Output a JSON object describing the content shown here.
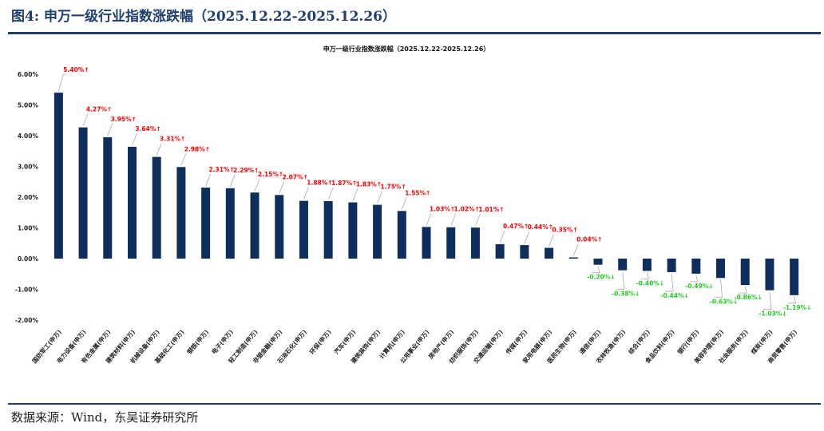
{
  "figure": {
    "title": "图4:  申万一级行业指数涨跌幅（2025.12.22-2025.12.26）",
    "source": "数据来源：Wind，东吴证券研究所"
  },
  "colors": {
    "bar": "#0e2f5e",
    "positive_label": "#ff0000",
    "negative_label": "#22cc22",
    "rule": "#1f3f6e",
    "leader": "#aaaaaa"
  },
  "chart_data": {
    "type": "bar",
    "title": "申万一级行业指数涨跌幅（2025.12.22-2025.12.26）",
    "xlabel": "",
    "ylabel": "",
    "ylim": [
      -2.0,
      6.0
    ],
    "yticks": [
      "6.00%",
      "5.00%",
      "4.00%",
      "3.00%",
      "2.00%",
      "1.00%",
      "0.00%",
      "-1.00%",
      "-2.00%"
    ],
    "ytick_values": [
      6,
      5,
      4,
      3,
      2,
      1,
      0,
      -1,
      -2
    ],
    "grid": false,
    "categories": [
      "国防军工(申万)",
      "电力设备(申万)",
      "有色金属(申万)",
      "建筑材料(申万)",
      "机械设备(申万)",
      "基础化工(申万)",
      "钢铁(申万)",
      "电子(申万)",
      "轻工制造(申万)",
      "非银金融(申万)",
      "石油石化(申万)",
      "环保(申万)",
      "汽车(申万)",
      "建筑装饰(申万)",
      "计算机(申万)",
      "公用事业(申万)",
      "房地产(申万)",
      "纺织服饰(申万)",
      "交通运输(申万)",
      "传媒(申万)",
      "家用电器(申万)",
      "医药生物(申万)",
      "通信(申万)",
      "农林牧渔(申万)",
      "综合(申万)",
      "食品饮料(申万)",
      "银行(申万)",
      "美容护理(申万)",
      "社会服务(申万)",
      "煤炭(申万)",
      "商贸零售(申万)"
    ],
    "values": [
      5.4,
      4.27,
      3.95,
      3.64,
      3.31,
      2.98,
      2.31,
      2.29,
      2.15,
      2.07,
      1.88,
      1.87,
      1.83,
      1.75,
      1.55,
      1.03,
      1.02,
      1.01,
      0.47,
      0.44,
      0.35,
      0.04,
      -0.2,
      -0.38,
      -0.4,
      -0.44,
      -0.49,
      -0.63,
      -0.86,
      -1.03,
      -1.19
    ],
    "labels": [
      "5.40%↑",
      "4.27%↑",
      "3.95%↑",
      "3.64%↑",
      "3.31%↑",
      "2.98%↑",
      "2.31%↑",
      "2.29%↑",
      "2.15%↑",
      "2.07%↑",
      "1.88%↑",
      "1.87%↑",
      "1.83%↑",
      "1.75%↑",
      "1.55%↑",
      "1.03%↑",
      "1.02%↑",
      "1.01%↑",
      "0.47%↑",
      "0.44%↑",
      "0.35%↑",
      "0.04%↑",
      "-0.20%↓",
      "-0.38%↓",
      "-0.40%↓",
      "-0.44%↓",
      "-0.49%↓",
      "-0.63%↓",
      "-0.86%↓",
      "-1.03%↓",
      "-1.19%↓"
    ]
  }
}
